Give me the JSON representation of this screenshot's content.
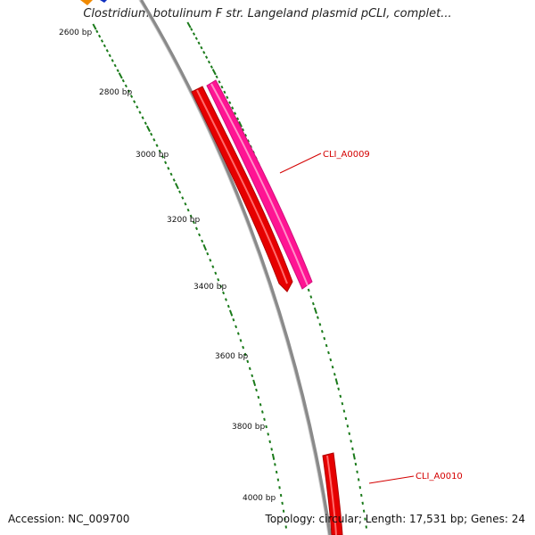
{
  "title": "Clostridium botulinum F str. Langeland plasmid pCLI, complet...",
  "accession": "Accession: NC_009700",
  "summary": "Topology: circular; Length: 17,531 bp; Genes: 24",
  "ticks": [
    "2600 bp",
    "2800 bp",
    "3000 bp",
    "3200 bp",
    "3400 bp",
    "3600 bp",
    "3800 bp",
    "4000 bp"
  ],
  "genes": [
    {
      "label": "CLI_A0009",
      "color": "#ff1493",
      "strand": "forward"
    },
    {
      "label": "",
      "color": "#e60000",
      "strand": "reverse"
    },
    {
      "label": "CLI_A0010",
      "color": "#e60000",
      "strand": "forward"
    }
  ],
  "colors": {
    "backbone": "#8a8a8a",
    "ticks": "#1a7a1a",
    "label_line": "#d40000"
  }
}
